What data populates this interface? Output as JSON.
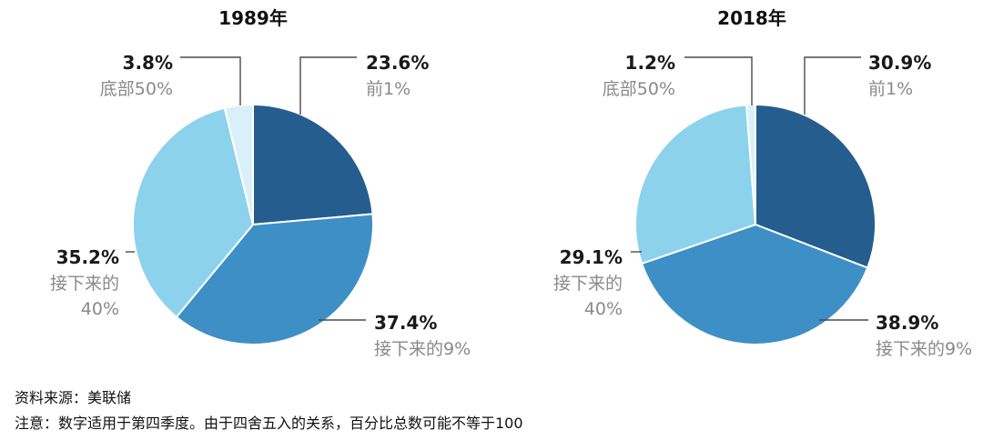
{
  "chart_data": [
    {
      "type": "pie",
      "title": "1989年",
      "slices": [
        {
          "group": "前1%",
          "value": 23.6,
          "label": "23.6%",
          "color": "#245d8e"
        },
        {
          "group": "接下来的9%",
          "value": 37.4,
          "label": "37.4%",
          "color": "#3e8fc5"
        },
        {
          "group": "接下来的40%",
          "value": 35.2,
          "label": "35.2%",
          "color": "#8dd2ec"
        },
        {
          "group": "底部50%",
          "value": 3.8,
          "label": "3.8%",
          "color": "#d9f0fa"
        }
      ]
    },
    {
      "type": "pie",
      "title": "2018年",
      "slices": [
        {
          "group": "前1%",
          "value": 30.9,
          "label": "30.9%",
          "color": "#245d8e"
        },
        {
          "group": "接下来的9%",
          "value": 38.9,
          "label": "38.9%",
          "color": "#3e8fc5"
        },
        {
          "group": "接下来的40%",
          "value": 29.1,
          "label": "29.1%",
          "color": "#8dd2ec"
        },
        {
          "group": "底部50%",
          "value": 1.2,
          "label": "1.2%",
          "color": "#d9f0fa"
        }
      ]
    }
  ],
  "footer": {
    "source": "资料来源：美联储",
    "note": "注意：数字适用于第四季度。由于四舍五入的关系，百分比总数可能不等于100"
  }
}
